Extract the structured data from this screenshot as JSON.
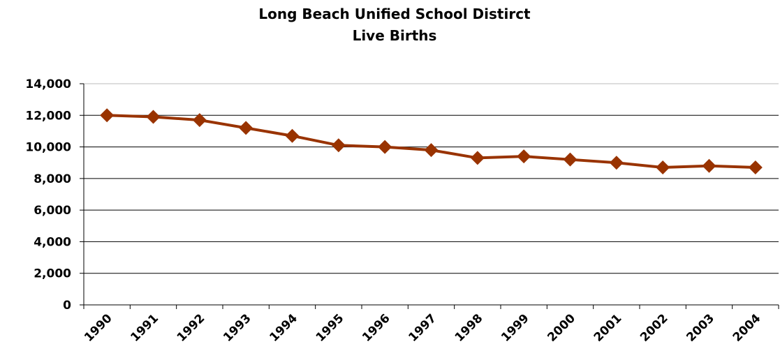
{
  "chart_data": {
    "type": "line",
    "title": [
      "Long Beach Unified School Distirct",
      "Live Births"
    ],
    "categories": [
      "1990",
      "1991",
      "1992",
      "1993",
      "1994",
      "1995",
      "1996",
      "1997",
      "1998",
      "1999",
      "2000",
      "2001",
      "2002",
      "2003",
      "2004"
    ],
    "series": [
      {
        "color": "#993300",
        "values": [
          12000,
          11900,
          11700,
          11200,
          10700,
          10100,
          10000,
          9800,
          9300,
          9400,
          9200,
          9000,
          8700,
          8800,
          8700
        ]
      }
    ],
    "ylim": [
      0,
      14000
    ],
    "yticks": [
      0,
      {
        "value": 2000,
        "label": "2,000"
      },
      {
        "value": 4000,
        "label": "4,000"
      },
      {
        "value": 6000,
        "label": "6,000"
      },
      {
        "value": 8000,
        "label": "8,000"
      },
      {
        "value": 10000,
        "label": "10,000"
      },
      {
        "value": 12000,
        "label": "12,000"
      },
      {
        "value": 14000,
        "label": "14,000"
      }
    ],
    "grid": true
  }
}
